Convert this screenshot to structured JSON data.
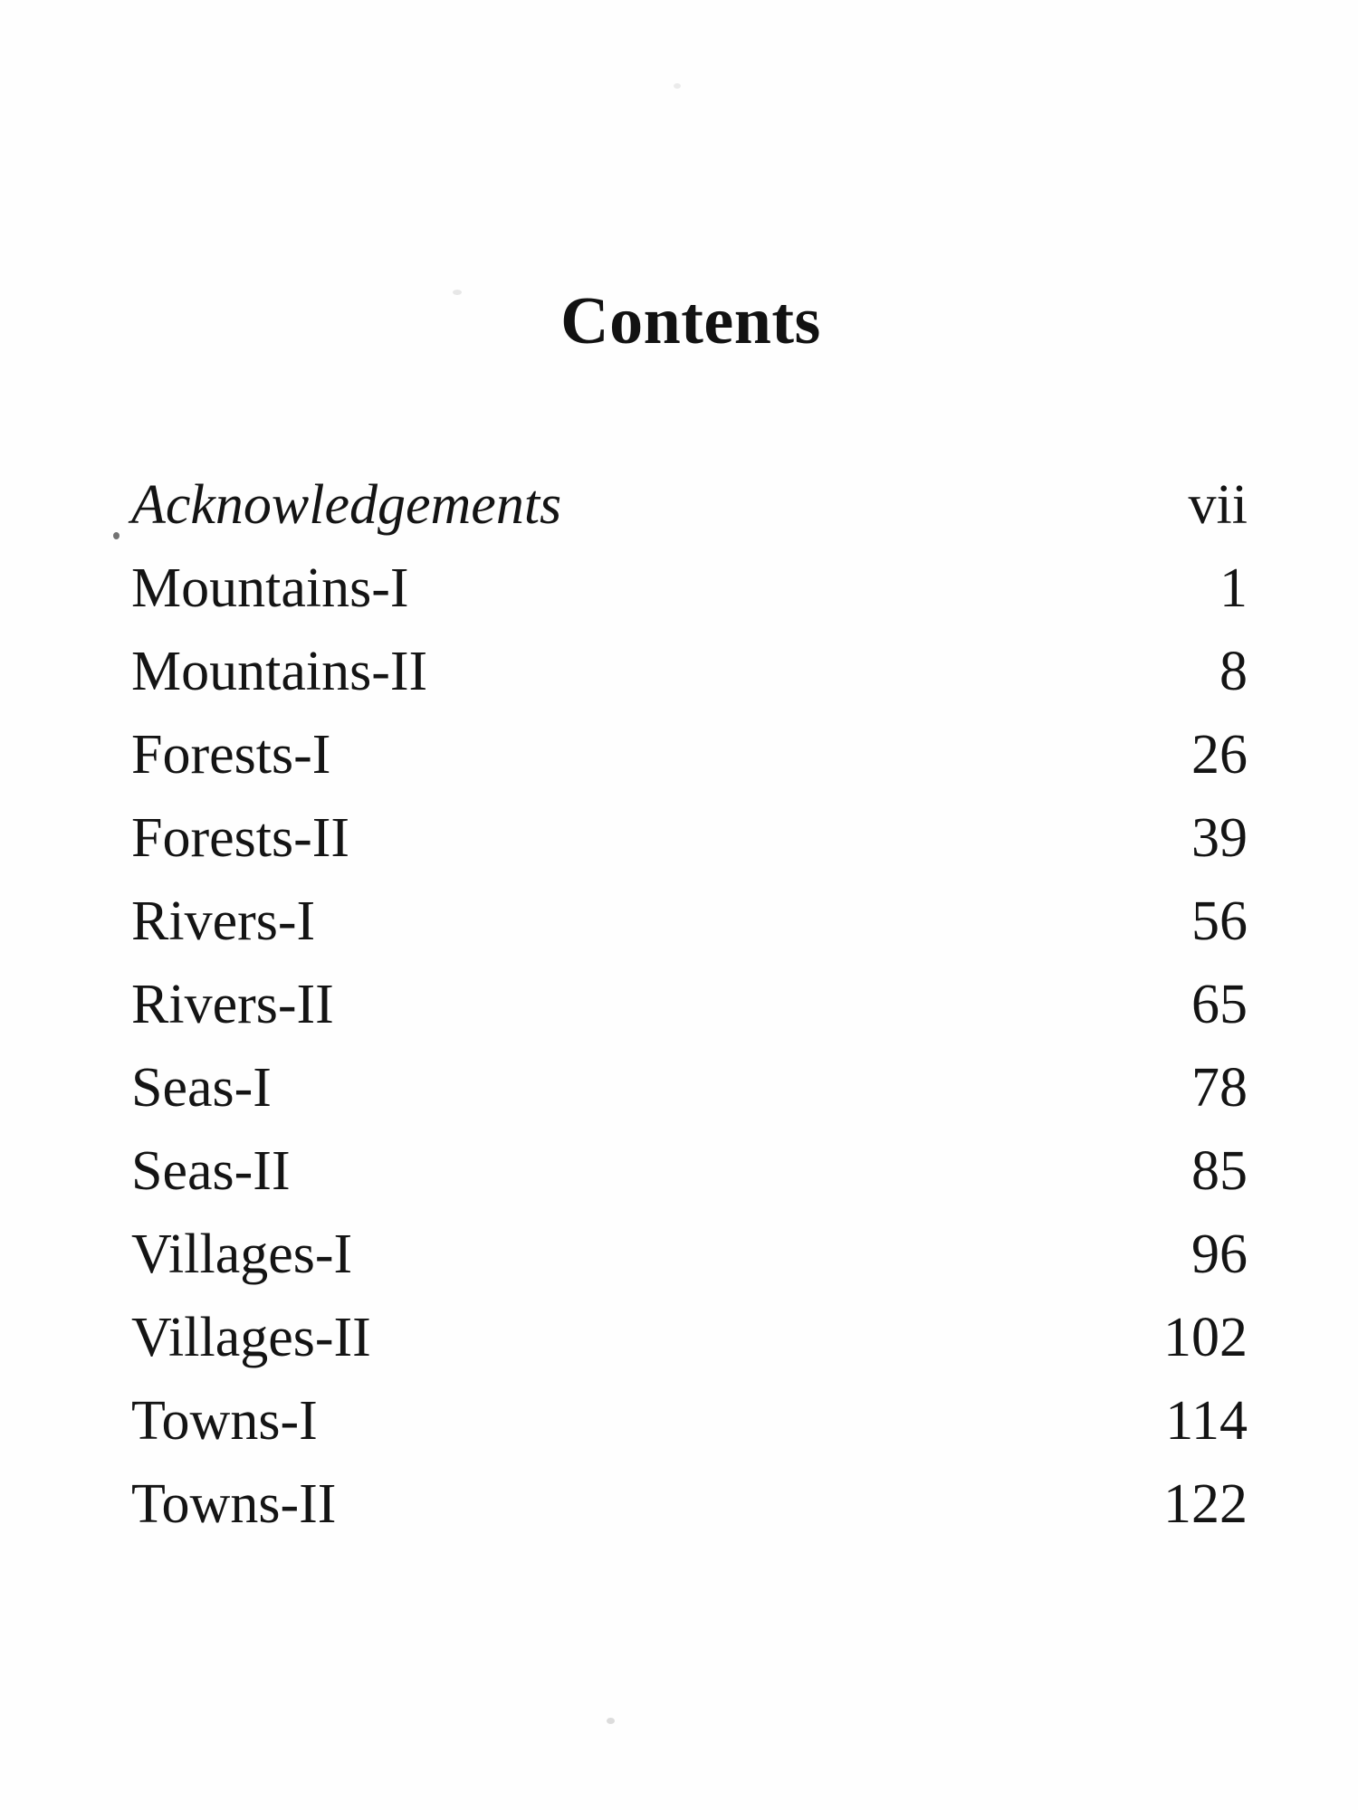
{
  "page": {
    "title": "Contents",
    "background_color": "#fefefe",
    "text_color": "#141414"
  },
  "toc": {
    "entries": [
      {
        "label": "Acknowledgements",
        "page": "vii",
        "italic": true
      },
      {
        "label": "Mountains-I",
        "page": "1",
        "italic": false
      },
      {
        "label": "Mountains-II",
        "page": "8",
        "italic": false
      },
      {
        "label": "Forests-I",
        "page": "26",
        "italic": false
      },
      {
        "label": "Forests-II",
        "page": "39",
        "italic": false
      },
      {
        "label": "Rivers-I",
        "page": "56",
        "italic": false
      },
      {
        "label": "Rivers-II",
        "page": "65",
        "italic": false
      },
      {
        "label": "Seas-I",
        "page": "78",
        "italic": false
      },
      {
        "label": "Seas-II",
        "page": "85",
        "italic": false
      },
      {
        "label": "Villages-I",
        "page": "96",
        "italic": false
      },
      {
        "label": "Villages-II",
        "page": "102",
        "italic": false
      },
      {
        "label": "Towns-I",
        "page": "114",
        "italic": false
      },
      {
        "label": "Towns-II",
        "page": "122",
        "italic": false
      }
    ]
  }
}
